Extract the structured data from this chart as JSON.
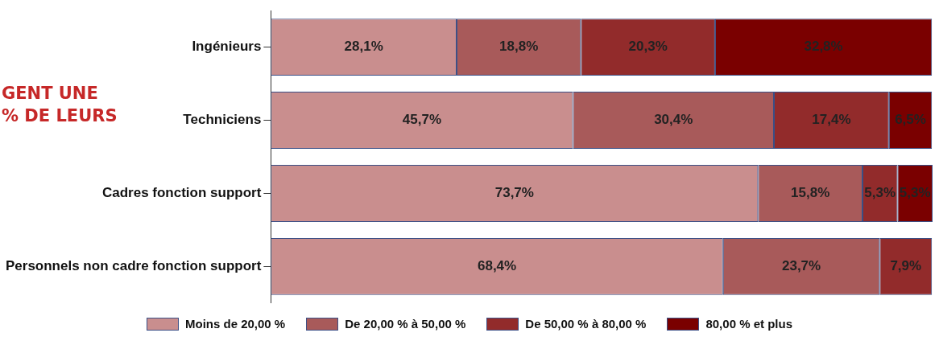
{
  "chart_data": {
    "type": "bar",
    "orientation": "horizontal",
    "stacked": true,
    "legend": "bottom",
    "grid": false,
    "categories": [
      "Ingénieurs",
      "Techniciens",
      "Cadres fonction support",
      "Personnels non cadre fonction support"
    ],
    "series": [
      {
        "name": "Moins de 20,00 %",
        "color": "#c98e8e",
        "values": [
          28.1,
          45.7,
          73.7,
          68.4
        ],
        "value_labels": [
          "28,1%",
          "45,7%",
          "73,7%",
          "68,4%"
        ]
      },
      {
        "name": "De 20,00 % à 50,00 %",
        "color": "#a85a5a",
        "values": [
          18.8,
          30.4,
          15.8,
          23.7
        ],
        "value_labels": [
          "18,8%",
          "30,4%",
          "15,8%",
          "23,7%"
        ]
      },
      {
        "name": "De 50,00 % à 80,00 %",
        "color": "#922b2b",
        "values": [
          20.3,
          17.4,
          5.3,
          7.9
        ],
        "value_labels": [
          "20,3%",
          "17,4%",
          "5,3%",
          "7,9%"
        ]
      },
      {
        "name": "80,00 % et plus",
        "color": "#7a0000",
        "values": [
          32.8,
          6.5,
          5.3,
          null
        ],
        "value_labels": [
          "32,8%",
          "6,5%",
          "5,3%",
          null
        ]
      }
    ],
    "annotations": [
      "GENT UNE",
      "% DE LEURS"
    ]
  }
}
